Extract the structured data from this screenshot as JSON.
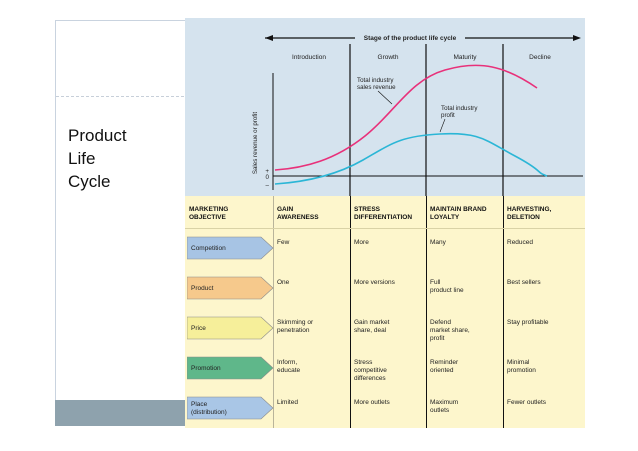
{
  "slide": {
    "title_lines": [
      "Product",
      "Life",
      "Cycle"
    ]
  },
  "chart": {
    "stage_title": "Stage of the product life cycle",
    "stages": [
      "Introduction",
      "Growth",
      "Maturity",
      "Decline"
    ],
    "y_axis_label": "Sales revenue or profit",
    "zero_label": "0",
    "plus_label": "+",
    "minus_label": "–",
    "revenue_label_lines": [
      "Total industry",
      "sales revenue"
    ],
    "profit_label_lines": [
      "Total industry",
      "profit"
    ],
    "revenue_color": "#e8317a",
    "profit_color": "#2bb6d6"
  },
  "table": {
    "headers": [
      [
        "MARKETING",
        "OBJECTIVE"
      ],
      [
        "GAIN",
        "AWARENESS"
      ],
      [
        "STRESS",
        "DIFFERENTIATION"
      ],
      [
        "MAINTAIN BRAND",
        "LOYALTY"
      ],
      [
        "HARVESTING,",
        "DELETION"
      ]
    ],
    "rows": [
      {
        "label": [
          "Competition"
        ],
        "color": "#a7c4e4",
        "cells": [
          [
            "Few"
          ],
          [
            "More"
          ],
          [
            "Many"
          ],
          [
            "Reduced"
          ]
        ]
      },
      {
        "label": [
          "Product"
        ],
        "color": "#f6c98c",
        "cells": [
          [
            "One"
          ],
          [
            "More versions"
          ],
          [
            "Full",
            "product line"
          ],
          [
            "Best sellers"
          ]
        ]
      },
      {
        "label": [
          "Price"
        ],
        "color": "#f6ef9a",
        "cells": [
          [
            "Skimming or",
            "penetration"
          ],
          [
            "Gain market",
            "share, deal"
          ],
          [
            "Defend",
            "market share,",
            "profit"
          ],
          [
            "Stay profitable"
          ]
        ]
      },
      {
        "label": [
          "Promotion"
        ],
        "color": "#5fb78a",
        "cells": [
          [
            "Inform,",
            "educate"
          ],
          [
            "Stress",
            "competitive",
            "differences"
          ],
          [
            "Reminder",
            "oriented"
          ],
          [
            "Minimal",
            "promotion"
          ]
        ]
      },
      {
        "label": [
          "Place",
          "(distribution)"
        ],
        "color": "#a9c6e6",
        "cells": [
          [
            "Limited"
          ],
          [
            "More outlets"
          ],
          [
            "Maximum",
            "outlets"
          ],
          [
            "Fewer outlets"
          ]
        ]
      }
    ]
  }
}
